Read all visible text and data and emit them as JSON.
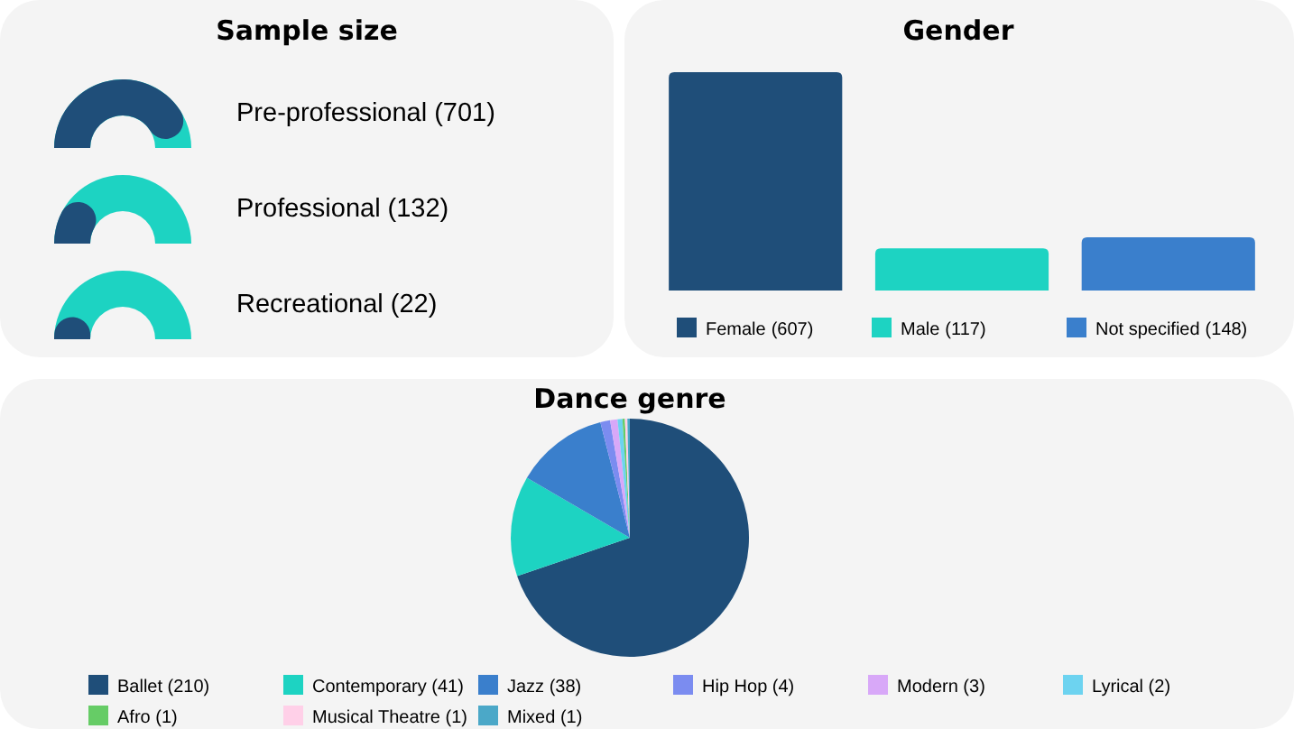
{
  "chart_data": [
    {
      "type": "other",
      "title": "Sample size",
      "categories": [
        "Pre-professional",
        "Professional",
        "Recreational"
      ],
      "values": [
        701,
        132,
        22
      ],
      "value_labels": [
        "(701)",
        "(132)",
        "(22)"
      ]
    },
    {
      "type": "bar",
      "title": "Gender",
      "categories": [
        "Female",
        "Male",
        "Not specified"
      ],
      "values": [
        607,
        117,
        148
      ],
      "value_labels": [
        "(607)",
        "(117)",
        "(148)"
      ],
      "colors": [
        "#1f4e79",
        "#1dd3c2",
        "#3a7fcc"
      ],
      "tick_labels": false
    },
    {
      "type": "pie",
      "title": "Dance genre",
      "categories": [
        "Ballet (210)",
        "Contemporary (41)",
        "Jazz (38)",
        "Hip Hop (4)",
        "Modern (3)",
        "Lyrical (2)",
        "Afro (1)",
        "Musical Theatre (1)",
        "Mixed (1)"
      ],
      "values": [
        210,
        41,
        38,
        4,
        3,
        2,
        1,
        1,
        1
      ],
      "colors": [
        "#1f4e79",
        "#1dd3c2",
        "#3a7fcc",
        "#7b8cf0",
        "#d8a8f8",
        "#6dd3f0",
        "#66cc66",
        "#ffd0e8",
        "#4ba8c8"
      ],
      "legend": "bottom"
    }
  ]
}
